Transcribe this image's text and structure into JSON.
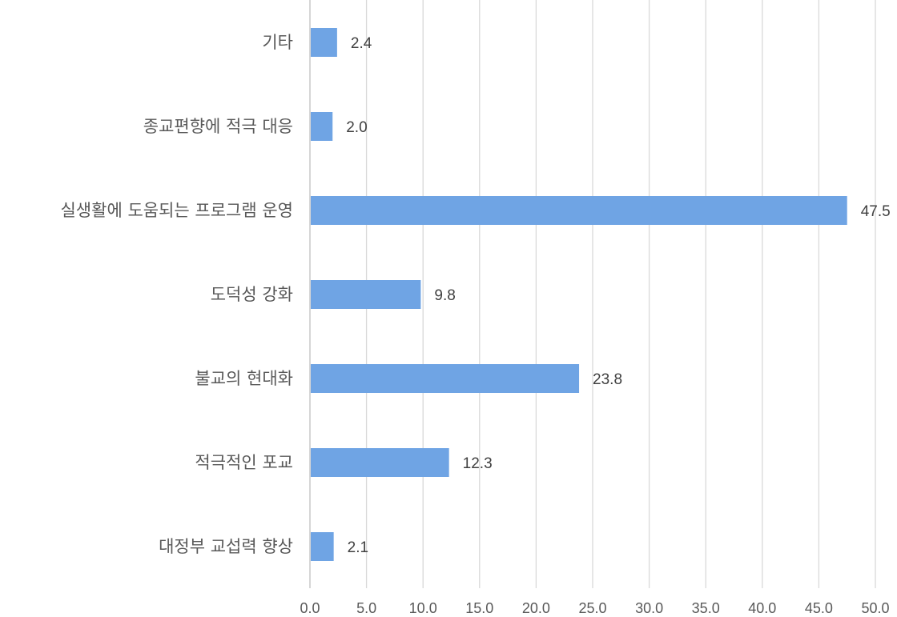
{
  "chart_data": {
    "type": "bar",
    "orientation": "horizontal",
    "categories": [
      "기타",
      "종교편향에 적극 대응",
      "실생활에 도움되는 프로그램 운영",
      "도덕성 강화",
      "불교의 현대화",
      "적극적인 포교",
      "대정부 교섭력 향상"
    ],
    "values": [
      2.4,
      2.0,
      47.5,
      9.8,
      23.8,
      12.3,
      2.1
    ],
    "value_labels": [
      "2.4",
      "2.0",
      "47.5",
      "9.8",
      "23.8",
      "12.3",
      "2.1"
    ],
    "xlim": [
      0,
      50
    ],
    "xticks": [
      "0.0",
      "5.0",
      "10.0",
      "15.0",
      "20.0",
      "25.0",
      "30.0",
      "35.0",
      "40.0",
      "45.0",
      "50.0"
    ],
    "title": "",
    "xlabel": "",
    "ylabel": "",
    "grid": true,
    "bar_color": "#6fa4e4"
  }
}
